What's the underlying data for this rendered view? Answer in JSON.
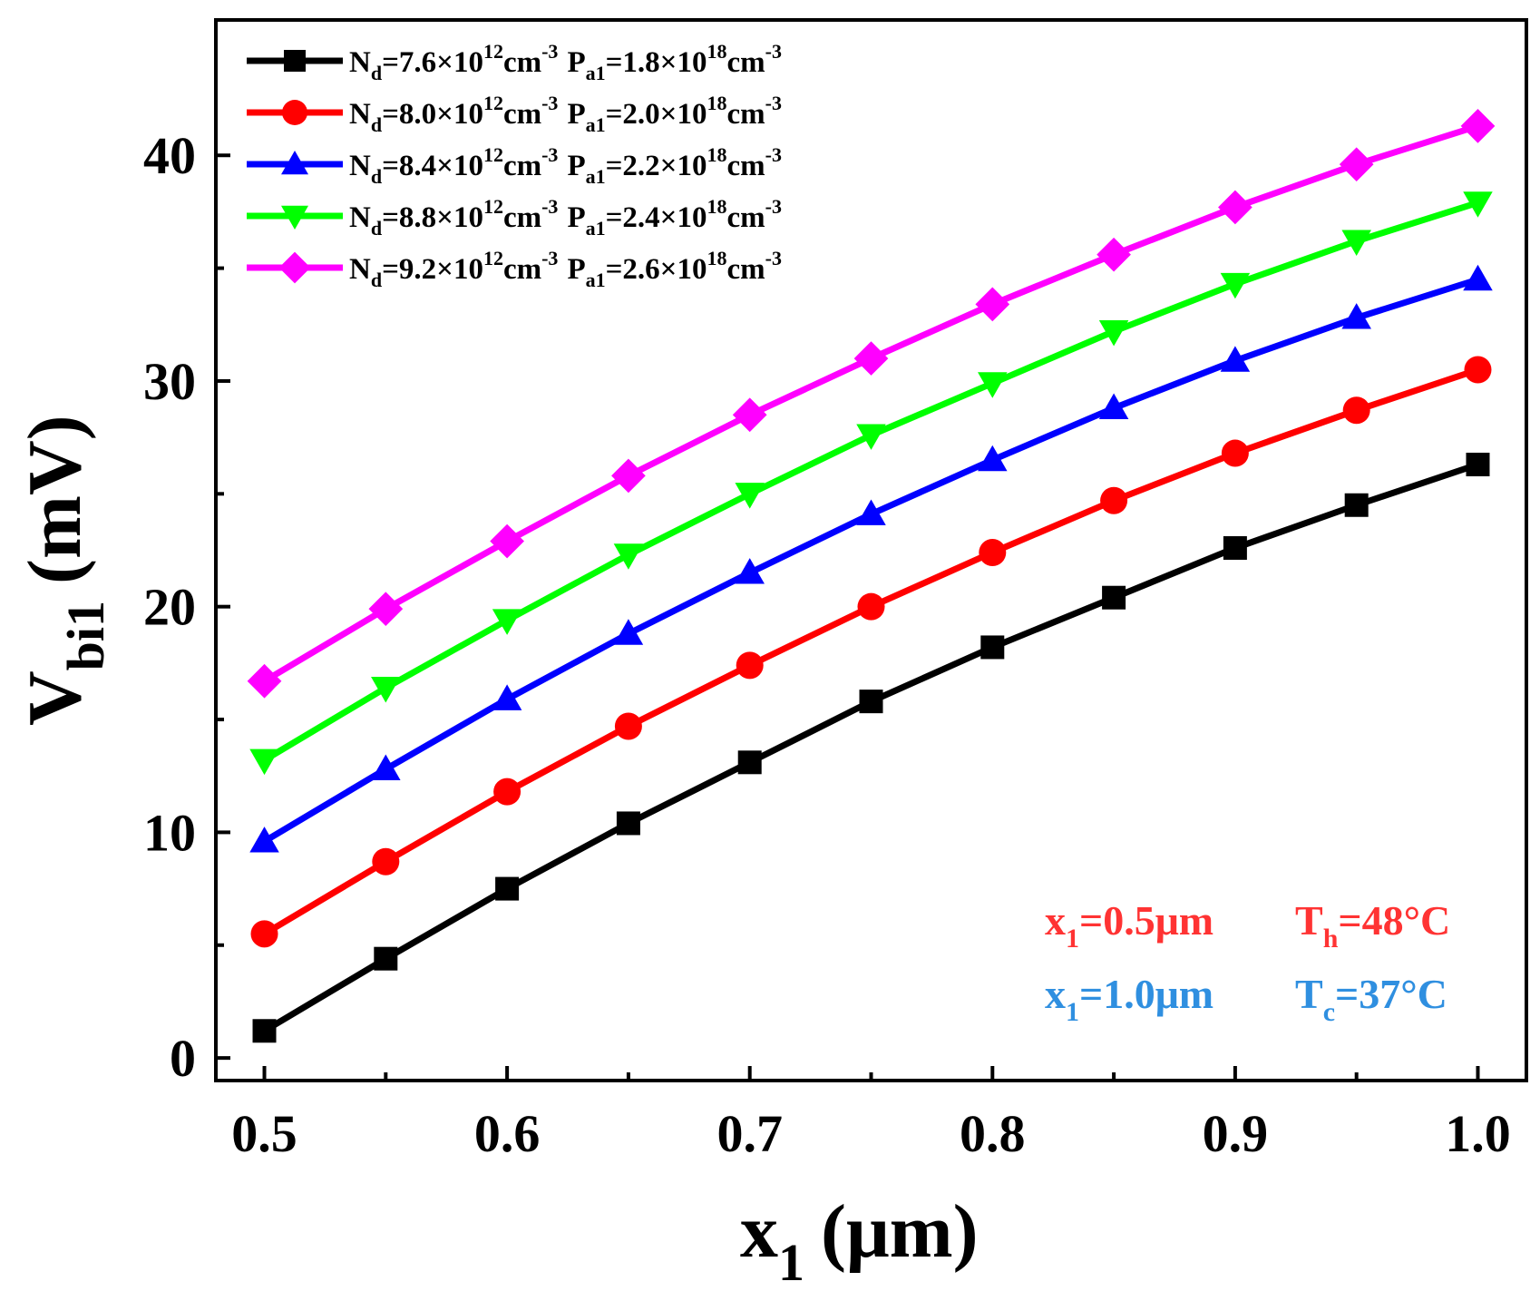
{
  "chart_data": {
    "type": "line",
    "title": "",
    "xlabel": {
      "main": "x",
      "sub": "1",
      "unit": "(μm)"
    },
    "ylabel": {
      "main": "V",
      "sub": "bi1",
      "unit": "(mV)"
    },
    "xlim": [
      0.48,
      1.02
    ],
    "ylim": [
      -1,
      46
    ],
    "x_ticks": [
      0.5,
      0.6,
      0.7,
      0.8,
      0.9,
      1.0
    ],
    "x_tick_labels": [
      "0.5",
      "0.6",
      "0.7",
      "0.8",
      "0.9",
      "1.0"
    ],
    "x_minor_ticks": [
      0.55,
      0.65,
      0.75,
      0.85,
      0.95
    ],
    "y_ticks": [
      0,
      10,
      20,
      30,
      40
    ],
    "y_tick_labels": [
      "0",
      "10",
      "20",
      "30",
      "40"
    ],
    "y_minor_ticks": [
      5,
      15,
      25,
      35
    ],
    "grid": false,
    "legend_position": "top-left",
    "x": [
      0.5,
      0.55,
      0.6,
      0.65,
      0.7,
      0.75,
      0.8,
      0.85,
      0.9,
      0.95,
      1.0
    ],
    "series": [
      {
        "color": "#000000",
        "marker": "square",
        "legend": {
          "nd_val": "7.6×10",
          "nd_exp": "12",
          "nd_unit": "cm",
          "nd_uexp": "-3",
          "pa_val": "1.8×10",
          "pa_exp": "18",
          "pa_unit": "cm",
          "pa_uexp": "-3"
        },
        "values": [
          1.2,
          4.4,
          7.5,
          10.4,
          13.1,
          15.8,
          18.2,
          20.4,
          22.6,
          24.5,
          26.3
        ]
      },
      {
        "color": "#ff0000",
        "marker": "circle",
        "legend": {
          "nd_val": "8.0×10",
          "nd_exp": "12",
          "nd_unit": "cm",
          "nd_uexp": "-3",
          "pa_val": "2.0×10",
          "pa_exp": "18",
          "pa_unit": "cm",
          "pa_uexp": "-3"
        },
        "values": [
          5.5,
          8.7,
          11.8,
          14.7,
          17.4,
          20.0,
          22.4,
          24.7,
          26.8,
          28.7,
          30.5
        ]
      },
      {
        "color": "#0000ff",
        "marker": "triangle-up",
        "legend": {
          "nd_val": "8.4×10",
          "nd_exp": "12",
          "nd_unit": "cm",
          "nd_uexp": "-3",
          "pa_val": "2.2×10",
          "pa_exp": "18",
          "pa_unit": "cm",
          "pa_uexp": "-3"
        },
        "values": [
          9.6,
          12.8,
          15.9,
          18.8,
          21.5,
          24.1,
          26.5,
          28.8,
          30.9,
          32.8,
          34.5
        ]
      },
      {
        "color": "#00ff00",
        "marker": "triangle-down",
        "legend": {
          "nd_val": "8.8×10",
          "nd_exp": "12",
          "nd_unit": "cm",
          "nd_uexp": "-3",
          "pa_val": "2.4×10",
          "pa_exp": "18",
          "pa_unit": "cm",
          "pa_uexp": "-3"
        },
        "values": [
          13.2,
          16.4,
          19.4,
          22.3,
          25.0,
          27.6,
          29.9,
          32.2,
          34.3,
          36.2,
          37.9
        ]
      },
      {
        "color": "#ff00ff",
        "marker": "diamond",
        "legend": {
          "nd_val": "9.2×10",
          "nd_exp": "12",
          "nd_unit": "cm",
          "nd_uexp": "-3",
          "pa_val": "2.6×10",
          "pa_exp": "18",
          "pa_unit": "cm",
          "pa_uexp": "-3"
        },
        "values": [
          16.7,
          19.9,
          22.9,
          25.8,
          28.5,
          31.0,
          33.4,
          35.6,
          37.7,
          39.6,
          41.3
        ]
      }
    ],
    "legend_labels": {
      "nd": "N",
      "nd_sub": "d",
      "pa": "P",
      "pa_sub": "a1"
    },
    "annotations": [
      {
        "row": 1,
        "color": "#ff3333",
        "left": {
          "main": "x",
          "sub": "1",
          "rest": "=0.5μm"
        },
        "right": {
          "main": "T",
          "sub": "h",
          "rest": "=48°C"
        }
      },
      {
        "row": 2,
        "color": "#2f8fe0",
        "left": {
          "main": "x",
          "sub": "1",
          "rest": "=1.0μm"
        },
        "right": {
          "main": "T",
          "sub": "c",
          "rest": "=37°C"
        }
      }
    ]
  }
}
